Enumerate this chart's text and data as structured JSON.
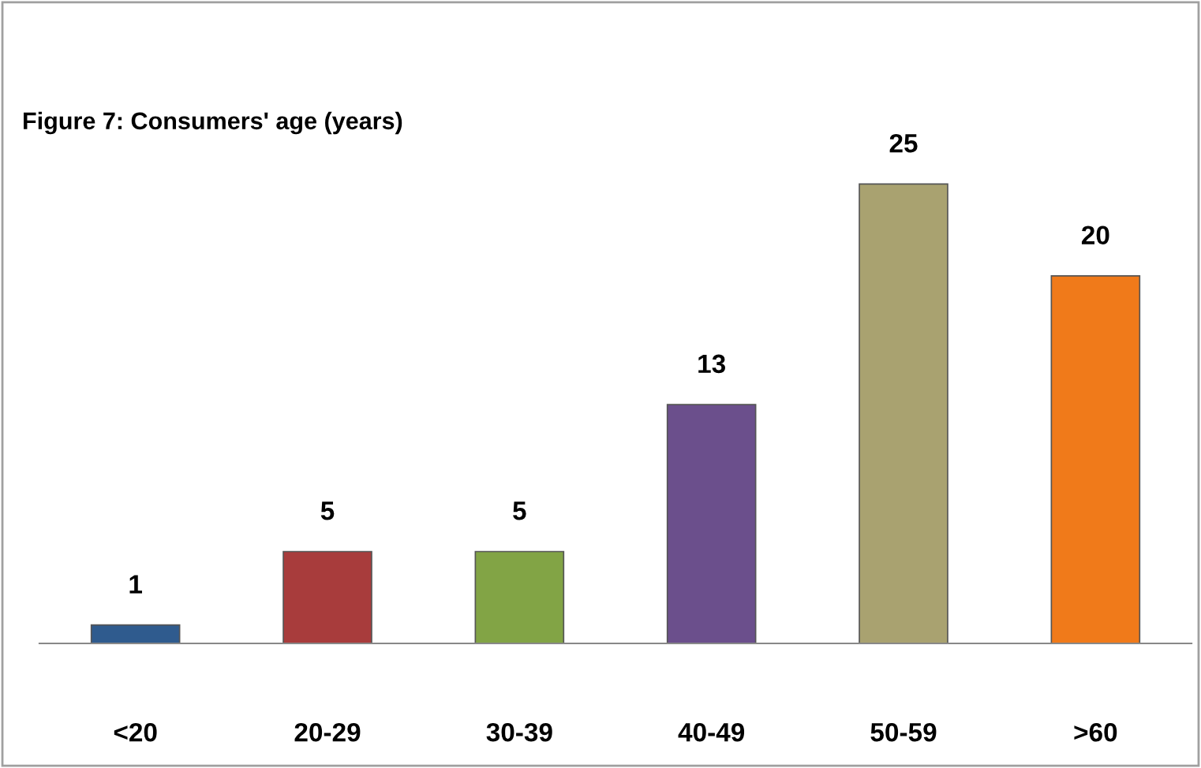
{
  "chart_data": {
    "type": "bar",
    "title": "Figure 7: Consumers' age (years)",
    "categories": [
      "<20",
      "20-29",
      "30-39",
      "40-49",
      "50-59",
      ">60"
    ],
    "values": [
      1,
      5,
      5,
      13,
      25,
      20
    ],
    "colors": [
      "#2f5b8e",
      "#a83c3c",
      "#82a445",
      "#6b4f8c",
      "#a9a270",
      "#f07a1a"
    ],
    "data_labels": true,
    "grid": false,
    "legend": false
  }
}
